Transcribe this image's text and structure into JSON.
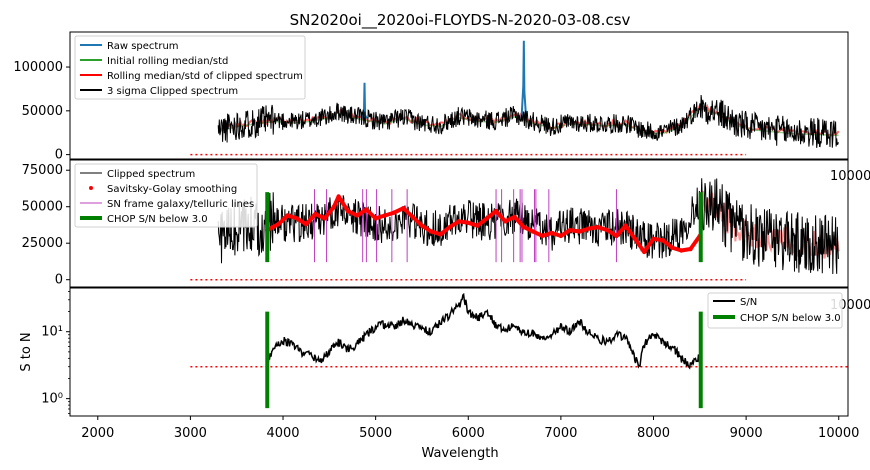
{
  "title": "SN2020oi__2020oi-FLOYDS-N-2020-03-08.csv",
  "chart_data": [
    {
      "type": "line",
      "panel": "top",
      "ylim": [
        -5000,
        140000
      ],
      "yticks": [
        0,
        50000,
        100000
      ],
      "ytick_labels": [
        "0",
        "50000",
        "100000"
      ],
      "stray_label": "10000",
      "xlim": [
        1700,
        10100
      ],
      "grid": false,
      "legend_position": "upper-left",
      "legend": [
        {
          "label": "Raw spectrum",
          "color": "#1f77b4",
          "kind": "line"
        },
        {
          "label": "Initial rolling median/std",
          "color": "#2ca02c",
          "kind": "line"
        },
        {
          "label": "Rolling median/std of clipped spectrum",
          "color": "#ff0000",
          "kind": "line"
        },
        {
          "label": "3 sigma Clipped spectrum",
          "color": "#000000",
          "kind": "line"
        }
      ],
      "raw_spikes": [
        {
          "x": 4880,
          "y": 82000
        },
        {
          "x": 6600,
          "y": 130000
        }
      ],
      "continuum": {
        "x": [
          3300,
          3500,
          3700,
          3900,
          4100,
          4300,
          4500,
          4600,
          4700,
          4900,
          5100,
          5300,
          5500,
          5700,
          5900,
          6100,
          6300,
          6500,
          6700,
          6900,
          7100,
          7300,
          7500,
          7700,
          7900,
          8100,
          8300,
          8500,
          8700,
          8900,
          9100,
          9300,
          9500,
          9700,
          10000
        ],
        "y": [
          28000,
          34000,
          37000,
          40000,
          38000,
          40000,
          44000,
          50000,
          45000,
          41000,
          37000,
          43000,
          36000,
          34000,
          44000,
          40000,
          39000,
          45000,
          38000,
          32000,
          37000,
          36000,
          35000,
          36000,
          27000,
          26000,
          34000,
          55000,
          48000,
          35000,
          30000,
          28000,
          26000,
          25000,
          24000
        ]
      },
      "dotted_line": {
        "x": [
          3000,
          9000
        ],
        "y": 0,
        "color": "#ff0000"
      }
    },
    {
      "type": "line",
      "panel": "middle",
      "ylim": [
        -5000,
        82000
      ],
      "yticks": [
        0,
        25000,
        50000,
        75000
      ],
      "ytick_labels": [
        "0",
        "25000",
        "50000",
        "75000"
      ],
      "stray_label": "10000",
      "xlim": [
        1700,
        10100
      ],
      "grid": false,
      "legend_position": "upper-left",
      "legend": [
        {
          "label": "Clipped spectrum",
          "color": "#000000",
          "kind": "thin-line"
        },
        {
          "label": "Savitsky-Golay smoothing",
          "color": "#ff0000",
          "kind": "dot"
        },
        {
          "label": "SN frame galaxy/telluric lines",
          "color": "#bf40bf",
          "kind": "thin-line"
        },
        {
          "label": "CHOP S/N below 3.0",
          "color": "#008000",
          "kind": "thick-line"
        }
      ],
      "smoothing": {
        "x": [
          3830,
          3950,
          4050,
          4150,
          4250,
          4350,
          4450,
          4550,
          4600,
          4700,
          4800,
          4900,
          5000,
          5100,
          5200,
          5300,
          5400,
          5500,
          5600,
          5700,
          5800,
          5900,
          6000,
          6100,
          6200,
          6300,
          6400,
          6500,
          6600,
          6700,
          6800,
          6900,
          7000,
          7100,
          7200,
          7300,
          7400,
          7500,
          7600,
          7700,
          7800,
          7900,
          8000,
          8100,
          8200,
          8300,
          8400,
          8500
        ],
        "y": [
          34000,
          38000,
          44000,
          42000,
          38000,
          45000,
          42000,
          50000,
          57000,
          47000,
          44000,
          48000,
          42000,
          44000,
          46000,
          49000,
          43000,
          37000,
          33000,
          31000,
          36000,
          40000,
          39000,
          37000,
          42000,
          47000,
          40000,
          43000,
          36000,
          33000,
          30000,
          32000,
          30000,
          34000,
          33000,
          35000,
          36000,
          34000,
          30000,
          37000,
          28000,
          19000,
          28000,
          27000,
          22000,
          20000,
          21000,
          30000
        ]
      },
      "line_markers_x": [
        4340,
        4470,
        4860,
        4900,
        5010,
        5175,
        5340,
        6300,
        6360,
        6490,
        6560,
        6580,
        6715,
        6730,
        6870,
        7600
      ],
      "chop_x": [
        3830,
        8510
      ],
      "dotted_line": {
        "x": [
          3000,
          9000
        ],
        "y": 0,
        "color": "#ff0000"
      }
    },
    {
      "type": "line",
      "panel": "bottom",
      "ylabel": "S to N",
      "xlabel": "Wavelength",
      "y_scale": "log",
      "ylim": [
        0.55,
        45
      ],
      "yticks": [
        1,
        10
      ],
      "ytick_labels": [
        "10⁰",
        "10¹"
      ],
      "stray_label": "10000",
      "xlim": [
        1700,
        10100
      ],
      "xticks": [
        2000,
        3000,
        4000,
        5000,
        6000,
        7000,
        8000,
        9000,
        10000
      ],
      "xtick_labels": [
        "2000",
        "3000",
        "4000",
        "5000",
        "6000",
        "7000",
        "8000",
        "9000",
        "10000"
      ],
      "grid": false,
      "legend_position": "upper-right",
      "legend": [
        {
          "label": "S/N",
          "color": "#000000",
          "kind": "line"
        },
        {
          "label": "CHOP S/N below 3.0",
          "color": "#008000",
          "kind": "thick-line"
        }
      ],
      "sn": {
        "x": [
          3830,
          3900,
          4000,
          4100,
          4200,
          4300,
          4400,
          4500,
          4600,
          4700,
          4800,
          4900,
          5000,
          5100,
          5200,
          5300,
          5400,
          5500,
          5600,
          5700,
          5800,
          5900,
          5950,
          6000,
          6100,
          6200,
          6300,
          6400,
          6500,
          6600,
          6700,
          6800,
          6900,
          7000,
          7100,
          7200,
          7300,
          7400,
          7500,
          7600,
          7700,
          7800,
          7850,
          7900,
          8000,
          8100,
          8200,
          8300,
          8400,
          8500
        ],
        "y": [
          3.0,
          6.0,
          7.5,
          6.5,
          5.0,
          4.5,
          3.5,
          5.0,
          7.0,
          5.5,
          6.5,
          9.0,
          12.0,
          13.0,
          12.0,
          15.0,
          13.0,
          11.0,
          10.0,
          14.0,
          18.0,
          25.0,
          33.0,
          20.0,
          16.0,
          20.0,
          12.0,
          11.0,
          12.0,
          10.0,
          9.5,
          8.0,
          9.0,
          12.0,
          10.0,
          14.0,
          10.0,
          8.0,
          7.0,
          9.0,
          8.0,
          4.0,
          3.2,
          6.5,
          9.0,
          7.0,
          6.0,
          4.0,
          3.0,
          4.2
        ]
      },
      "chop_x": [
        3830,
        8510
      ],
      "chop_y_range": [
        0.72,
        20
      ],
      "threshold": {
        "x": [
          3000,
          10100
        ],
        "y": 3.0,
        "color": "#ff0000"
      }
    }
  ]
}
